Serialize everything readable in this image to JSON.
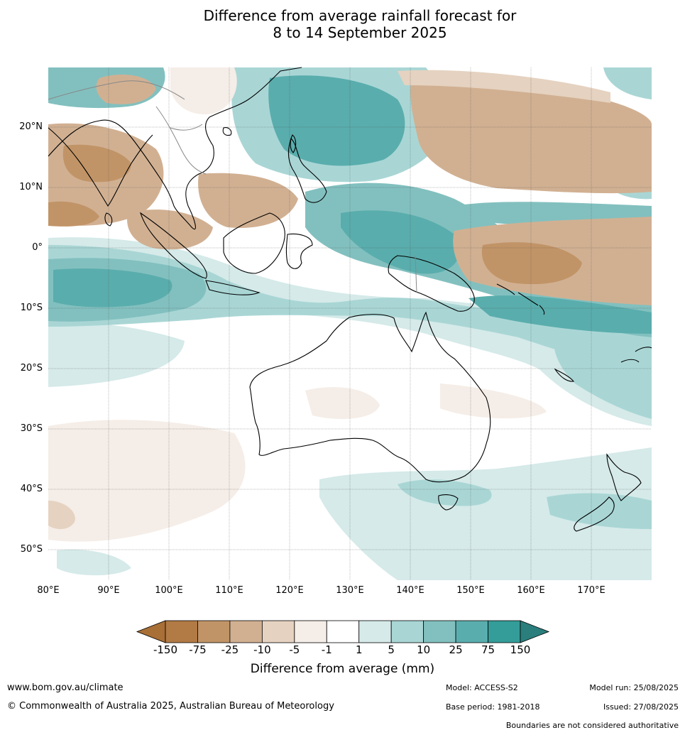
{
  "title_line1": "Difference from average rainfall forecast for",
  "title_line2": "8 to 14 September 2025",
  "lat_labels": [
    "20°N",
    "10°N",
    "0°",
    "10°S",
    "20°S",
    "30°S",
    "40°S",
    "50°S"
  ],
  "lon_labels": [
    "80°E",
    "90°E",
    "100°E",
    "110°E",
    "120°E",
    "130°E",
    "140°E",
    "150°E",
    "160°E",
    "170°E"
  ],
  "legend": {
    "title": "Difference from average (mm)",
    "ticks": [
      "-150",
      "-75",
      "-25",
      "-10",
      "-5",
      "-1",
      "1",
      "5",
      "10",
      "25",
      "75",
      "150"
    ],
    "colors": [
      "#a86f36",
      "#b27a45",
      "#c19467",
      "#d1b092",
      "#e5d2c0",
      "#f5ede7",
      "#ffffff",
      "#d5eae9",
      "#a9d6d5",
      "#82c0bf",
      "#5aadad",
      "#349c99",
      "#2a7e7c"
    ]
  },
  "footer": {
    "website": "www.bom.gov.au/climate",
    "copyright": "© Commonwealth of Australia 2025, Australian Bureau of Meteorology",
    "model": "Model: ACCESS-S2",
    "base_period": "Base period: 1981-2018",
    "model_run": "Model run: 25/08/2025",
    "issued": "Issued: 27/08/2025",
    "disclaimer": "Boundaries are not considered authoritative"
  }
}
